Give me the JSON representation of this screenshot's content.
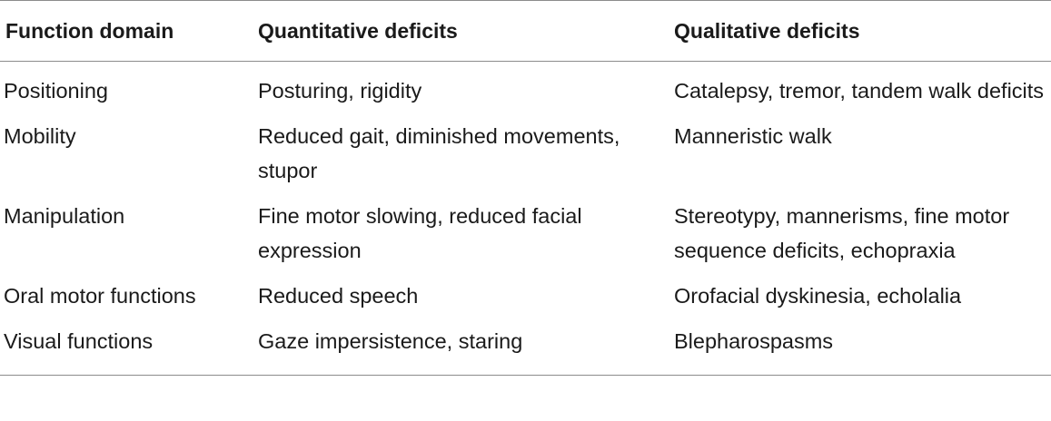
{
  "table": {
    "headers": [
      "Function domain",
      "Quantitative deficits",
      "Qualitative deficits"
    ],
    "rows": [
      [
        "Positioning",
        "Posturing, rigidity",
        "Catalepsy, tremor, tandem walk deficits"
      ],
      [
        "Mobility",
        "Reduced gait, diminished movements, stupor",
        "Manneristic walk"
      ],
      [
        "Manipulation",
        "Fine motor slowing, reduced facial expression",
        "Stereotypy, mannerisms, fine motor sequence deficits, echopraxia"
      ],
      [
        "Oral motor functions",
        "Reduced speech",
        "Orofacial dyskinesia, echolalia"
      ],
      [
        "Visual functions",
        "Gaze impersistence, staring",
        "Blepharospasms"
      ]
    ]
  }
}
